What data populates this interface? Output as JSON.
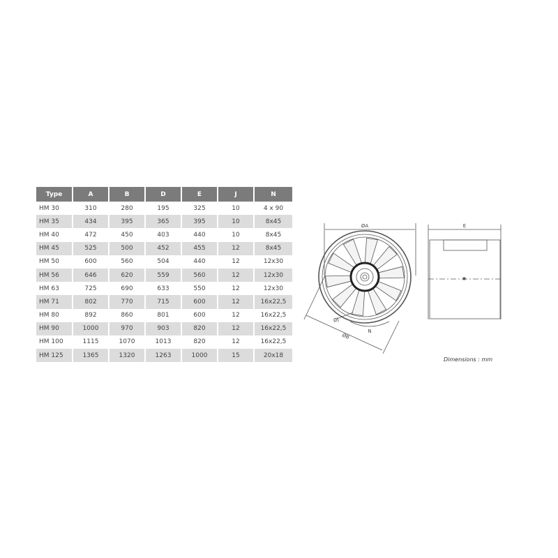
{
  "table": {
    "headers": [
      "Type",
      "A",
      "B",
      "D",
      "E",
      "J",
      "N"
    ],
    "rows": [
      [
        "HM 30",
        "310",
        "280",
        "195",
        "325",
        "10",
        "4 x 90"
      ],
      [
        "HM 35",
        "434",
        "395",
        "365",
        "395",
        "10",
        "8x45"
      ],
      [
        "HM 40",
        "472",
        "450",
        "403",
        "440",
        "10",
        "8x45"
      ],
      [
        "HM 45",
        "525",
        "500",
        "452",
        "455",
        "12",
        "8x45"
      ],
      [
        "HM 50",
        "600",
        "560",
        "504",
        "440",
        "12",
        "12x30"
      ],
      [
        "HM 56",
        "646",
        "620",
        "559",
        "560",
        "12",
        "12x30"
      ],
      [
        "HM 63",
        "725",
        "690",
        "633",
        "550",
        "12",
        "12x30"
      ],
      [
        "HM 71",
        "802",
        "770",
        "715",
        "600",
        "12",
        "16x22,5"
      ],
      [
        "HM 80",
        "892",
        "860",
        "801",
        "600",
        "12",
        "16x22,5"
      ],
      [
        "HM 90",
        "1000",
        "970",
        "903",
        "820",
        "12",
        "16x22,5"
      ],
      [
        "HM 100",
        "1115",
        "1070",
        "1013",
        "820",
        "12",
        "16x22,5"
      ],
      [
        "HM 125",
        "1365",
        "1320",
        "1263",
        "1000",
        "15",
        "20x18"
      ]
    ]
  },
  "drawing": {
    "label_a": "ØA",
    "label_b": "ØB",
    "label_j": "ØJ",
    "label_n": "N",
    "label_e": "E"
  },
  "units_note": "Dimensions : mm"
}
